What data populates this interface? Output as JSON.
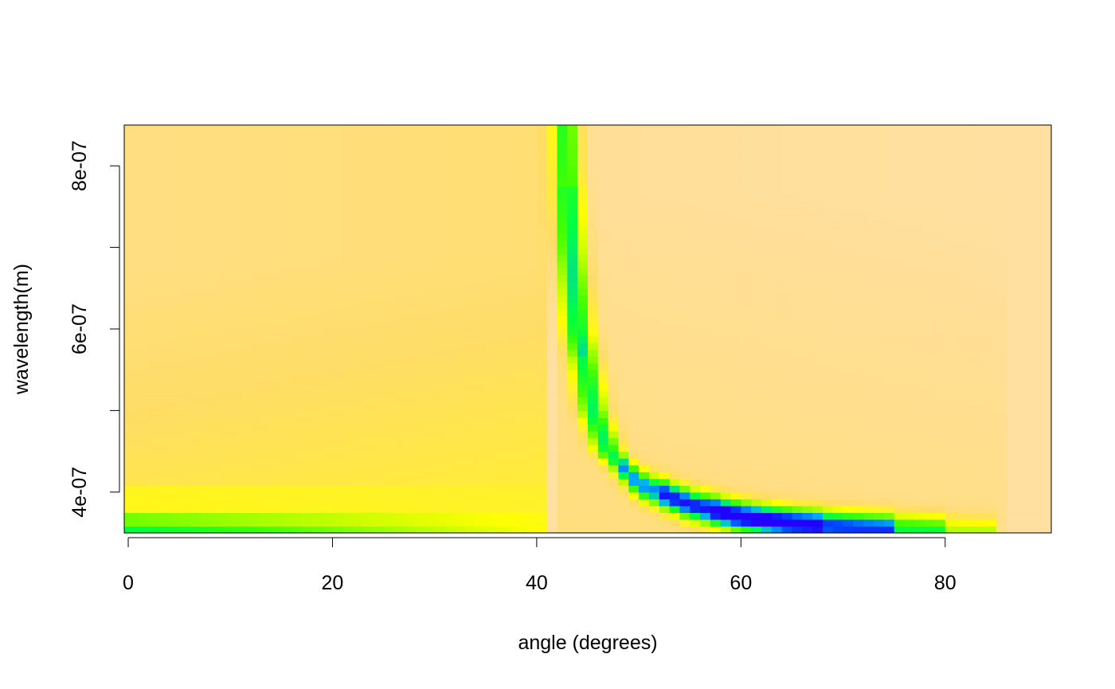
{
  "chart_data": {
    "type": "heatmap",
    "title": "",
    "xlabel": "angle (degrees)",
    "ylabel": "wavelength(m)",
    "xlim": [
      0,
      90
    ],
    "ylim": [
      3.5e-07,
      8.5e-07
    ],
    "grid": false,
    "legend": "none",
    "x_ticks": [
      {
        "value": 0,
        "label": "0"
      },
      {
        "value": 20,
        "label": "20"
      },
      {
        "value": 40,
        "label": "40"
      },
      {
        "value": 60,
        "label": "60"
      },
      {
        "value": 80,
        "label": "80"
      }
    ],
    "y_ticks": [
      {
        "value": 4e-07,
        "label": "4e-07"
      },
      {
        "value": 5e-07,
        "label": ""
      },
      {
        "value": 6e-07,
        "label": "6e-07"
      },
      {
        "value": 7e-07,
        "label": ""
      },
      {
        "value": 8e-07,
        "label": "8e-07"
      }
    ],
    "color_scale": {
      "palette": "topo-like (low = dark blue, high = pale orange)",
      "stops": [
        "#2200ff",
        "#0044ff",
        "#00aaff",
        "#00ff44",
        "#44ff00",
        "#aaff00",
        "#ffff00",
        "#ffdd66",
        "#ffe0a6"
      ]
    },
    "features": {
      "critical_angle_deg": 41.2,
      "resonance_curve": [
        {
          "angle": 42.8,
          "wavelength": 8.5e-07
        },
        {
          "angle": 42.9,
          "wavelength": 8e-07
        },
        {
          "angle": 43.3,
          "wavelength": 7e-07
        },
        {
          "angle": 44.0,
          "wavelength": 6e-07
        },
        {
          "angle": 44.8,
          "wavelength": 5.5e-07
        },
        {
          "angle": 45.5,
          "wavelength": 5e-07
        },
        {
          "angle": 47.0,
          "wavelength": 4.5e-07
        },
        {
          "angle": 50.0,
          "wavelength": 4.1e-07
        },
        {
          "angle": 55.0,
          "wavelength": 3.85e-07
        },
        {
          "angle": 60.0,
          "wavelength": 3.7e-07
        },
        {
          "angle": 65.0,
          "wavelength": 3.62e-07
        },
        {
          "angle": 72.0,
          "wavelength": 3.56e-07
        },
        {
          "angle": 80.0,
          "wavelength": 3.52e-07
        },
        {
          "angle": 85.0,
          "wavelength": 3.5e-07
        }
      ]
    }
  }
}
